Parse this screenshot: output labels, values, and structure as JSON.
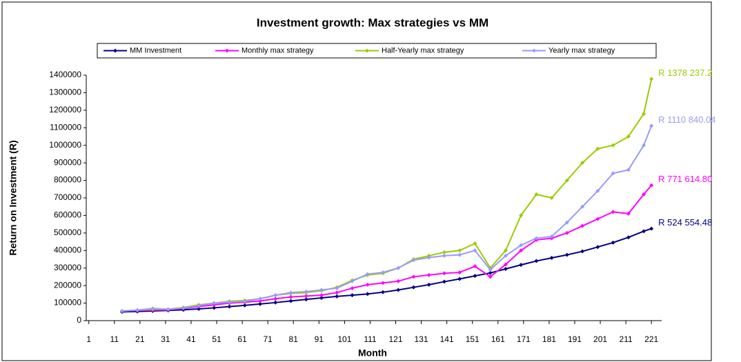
{
  "chart_data": {
    "type": "line",
    "title": "Investment growth: Max strategies vs MM",
    "xlabel": "Month",
    "ylabel": "Return on Investment (R)",
    "x": [
      14,
      20,
      26,
      32,
      38,
      44,
      50,
      56,
      62,
      68,
      74,
      80,
      86,
      92,
      98,
      104,
      110,
      116,
      122,
      128,
      134,
      140,
      146,
      152,
      158,
      164,
      170,
      176,
      182,
      188,
      194,
      200,
      206,
      212,
      218,
      221
    ],
    "series": [
      {
        "name": "MM Investment",
        "color": "#000080",
        "values": [
          50000,
          52000,
          55000,
          58000,
          62000,
          67000,
          73000,
          80000,
          87000,
          95000,
          103000,
          112000,
          121000,
          130000,
          138000,
          145000,
          152000,
          162000,
          175000,
          190000,
          205000,
          222000,
          238000,
          255000,
          272000,
          295000,
          318000,
          340000,
          358000,
          375000,
          395000,
          420000,
          445000,
          475000,
          510000,
          524554.48
        ],
        "value_labels": [
          null,
          null,
          null,
          null,
          null,
          null,
          null,
          null,
          null,
          null,
          null,
          null,
          null,
          null,
          null,
          null,
          null,
          null,
          null,
          null,
          null,
          null,
          null,
          null,
          null,
          null,
          null,
          null,
          null,
          null,
          null,
          null,
          null,
          null,
          null,
          "R 524 554.48"
        ]
      },
      {
        "name": "Monthly max strategy",
        "color": "#ff00ff",
        "values": [
          55000,
          58000,
          60000,
          62000,
          70000,
          80000,
          90000,
          100000,
          105000,
          112000,
          125000,
          135000,
          140000,
          145000,
          160000,
          185000,
          205000,
          215000,
          225000,
          250000,
          260000,
          270000,
          275000,
          310000,
          250000,
          320000,
          400000,
          460000,
          470000,
          500000,
          540000,
          580000,
          620000,
          610000,
          720000,
          771614.8
        ],
        "value_labels": [
          null,
          null,
          null,
          null,
          null,
          null,
          null,
          null,
          null,
          null,
          null,
          null,
          null,
          null,
          null,
          null,
          null,
          null,
          null,
          null,
          null,
          null,
          null,
          null,
          null,
          null,
          null,
          null,
          null,
          null,
          null,
          null,
          null,
          null,
          null,
          "R 771 614.80"
        ]
      },
      {
        "name": "Half-Yearly max strategy",
        "color": "#99cc00",
        "values": [
          55000,
          60000,
          65000,
          65000,
          75000,
          90000,
          100000,
          110000,
          115000,
          125000,
          145000,
          155000,
          160000,
          170000,
          190000,
          230000,
          260000,
          270000,
          300000,
          350000,
          370000,
          390000,
          400000,
          440000,
          300000,
          400000,
          600000,
          720000,
          700000,
          800000,
          900000,
          980000,
          1000000,
          1050000,
          1180000,
          1378237.2
        ],
        "value_labels": [
          null,
          null,
          null,
          null,
          null,
          null,
          null,
          null,
          null,
          null,
          null,
          null,
          null,
          null,
          null,
          null,
          null,
          null,
          null,
          null,
          null,
          null,
          null,
          null,
          null,
          null,
          null,
          null,
          null,
          null,
          null,
          null,
          null,
          null,
          null,
          "R 1378 237.2"
        ]
      },
      {
        "name": "Yearly max strategy",
        "color": "#9999ff",
        "values": [
          55000,
          60000,
          70000,
          65000,
          72000,
          85000,
          100000,
          105000,
          110000,
          125000,
          145000,
          160000,
          165000,
          175000,
          185000,
          225000,
          265000,
          275000,
          300000,
          345000,
          360000,
          370000,
          375000,
          400000,
          290000,
          370000,
          430000,
          470000,
          480000,
          560000,
          650000,
          740000,
          840000,
          860000,
          1000000,
          1110840.04
        ],
        "value_labels": [
          null,
          null,
          null,
          null,
          null,
          null,
          null,
          null,
          null,
          null,
          null,
          null,
          null,
          null,
          null,
          null,
          null,
          null,
          null,
          null,
          null,
          null,
          null,
          null,
          null,
          null,
          null,
          null,
          null,
          null,
          null,
          null,
          null,
          null,
          null,
          "R 1110 840.04"
        ]
      }
    ],
    "xlim": [
      0,
      225
    ],
    "xticks": [
      1,
      11,
      21,
      31,
      41,
      51,
      61,
      71,
      81,
      91,
      101,
      111,
      121,
      131,
      141,
      151,
      161,
      171,
      181,
      191,
      201,
      211,
      221
    ],
    "ylim": [
      0,
      1400000
    ],
    "yticks": [
      0,
      100000,
      200000,
      300000,
      400000,
      500000,
      600000,
      700000,
      800000,
      900000,
      1000000,
      1100000,
      1200000,
      1300000,
      1400000
    ],
    "legend": "top"
  }
}
